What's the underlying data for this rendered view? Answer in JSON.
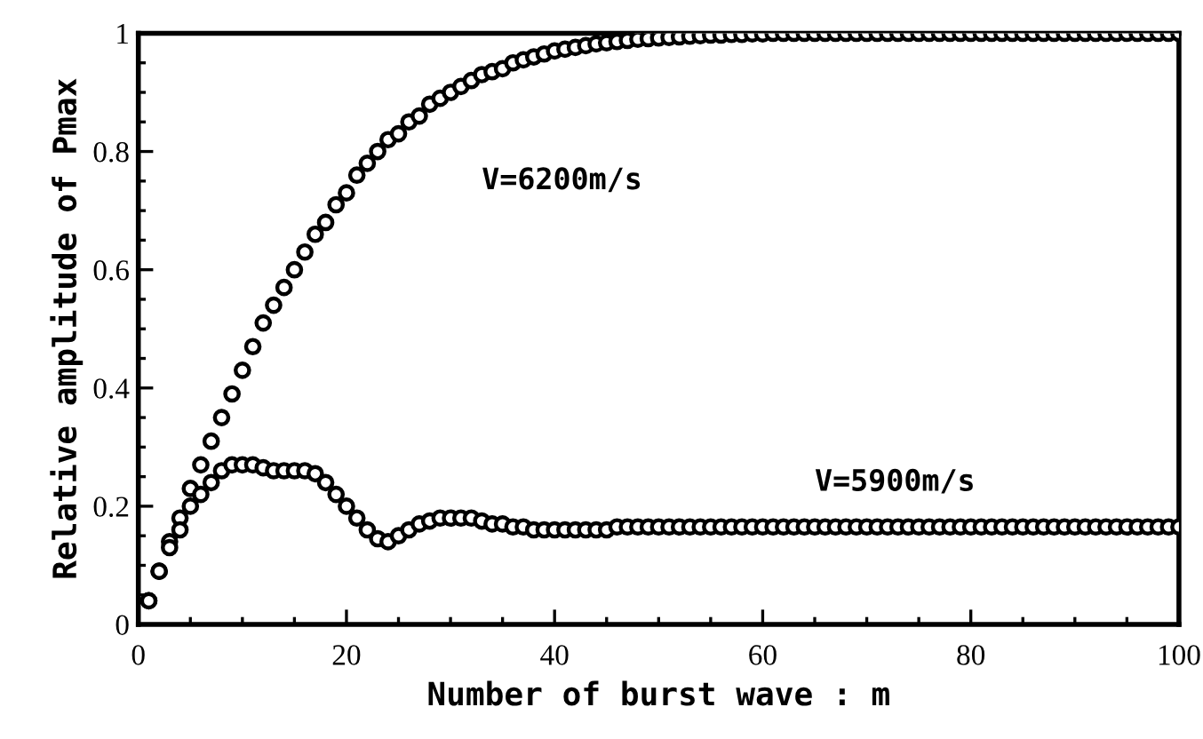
{
  "chart_data": {
    "type": "scatter",
    "xlabel": "Number of burst wave : m",
    "ylabel": "Relative amplitude of Pmax",
    "x": [
      1,
      2,
      3,
      4,
      5,
      6,
      7,
      8,
      9,
      10,
      11,
      12,
      13,
      14,
      15,
      16,
      17,
      18,
      19,
      20,
      21,
      22,
      23,
      24,
      25,
      26,
      27,
      28,
      29,
      30,
      31,
      32,
      33,
      34,
      35,
      36,
      37,
      38,
      39,
      40,
      41,
      42,
      43,
      44,
      45,
      46,
      47,
      48,
      49,
      50,
      51,
      52,
      53,
      54,
      55,
      56,
      57,
      58,
      59,
      60,
      61,
      62,
      63,
      64,
      65,
      66,
      67,
      68,
      69,
      70,
      71,
      72,
      73,
      74,
      75,
      76,
      77,
      78,
      79,
      80,
      81,
      82,
      83,
      84,
      85,
      86,
      87,
      88,
      89,
      90,
      91,
      92,
      93,
      94,
      95,
      96,
      97,
      98,
      99,
      100
    ],
    "series": [
      {
        "name": "V=6200m/s",
        "color": "#000000",
        "values": [
          0.04,
          0.09,
          0.14,
          0.18,
          0.23,
          0.27,
          0.31,
          0.35,
          0.39,
          0.43,
          0.47,
          0.51,
          0.54,
          0.57,
          0.6,
          0.63,
          0.66,
          0.68,
          0.71,
          0.73,
          0.76,
          0.78,
          0.8,
          0.82,
          0.83,
          0.85,
          0.86,
          0.88,
          0.89,
          0.9,
          0.91,
          0.92,
          0.93,
          0.935,
          0.94,
          0.95,
          0.955,
          0.96,
          0.965,
          0.97,
          0.973,
          0.976,
          0.979,
          0.982,
          0.984,
          0.986,
          0.988,
          0.99,
          0.991,
          0.992,
          0.993,
          0.994,
          0.995,
          0.996,
          0.997,
          0.997,
          0.998,
          0.998,
          0.999,
          0.999,
          1,
          1,
          1,
          1,
          1,
          1,
          1,
          1,
          1,
          1,
          1,
          1,
          1,
          1,
          1,
          1,
          1,
          1,
          1,
          1,
          1,
          1,
          1,
          1,
          1,
          1,
          1,
          1,
          1,
          1,
          1,
          1,
          1,
          1,
          1,
          1,
          1,
          1,
          1,
          1
        ]
      },
      {
        "name": "V=5900m/s",
        "color": "#000000",
        "values": [
          0.04,
          0.09,
          0.13,
          0.16,
          0.2,
          0.22,
          0.24,
          0.26,
          0.27,
          0.27,
          0.27,
          0.265,
          0.26,
          0.26,
          0.26,
          0.26,
          0.255,
          0.24,
          0.22,
          0.2,
          0.18,
          0.16,
          0.145,
          0.14,
          0.15,
          0.16,
          0.17,
          0.175,
          0.18,
          0.18,
          0.18,
          0.18,
          0.175,
          0.17,
          0.17,
          0.165,
          0.165,
          0.16,
          0.16,
          0.16,
          0.16,
          0.16,
          0.16,
          0.16,
          0.16,
          0.165,
          0.165,
          0.165,
          0.165,
          0.165,
          0.165,
          0.165,
          0.165,
          0.165,
          0.165,
          0.165,
          0.165,
          0.165,
          0.165,
          0.165,
          0.165,
          0.165,
          0.165,
          0.165,
          0.165,
          0.165,
          0.165,
          0.165,
          0.165,
          0.165,
          0.165,
          0.165,
          0.165,
          0.165,
          0.165,
          0.165,
          0.165,
          0.165,
          0.165,
          0.165,
          0.165,
          0.165,
          0.165,
          0.165,
          0.165,
          0.165,
          0.165,
          0.165,
          0.165,
          0.165,
          0.165,
          0.165,
          0.165,
          0.165,
          0.165,
          0.165,
          0.165,
          0.165,
          0.165,
          0.165
        ]
      }
    ],
    "marker": "circle",
    "xlim": [
      0,
      100
    ],
    "xticks": [
      0,
      20,
      40,
      60,
      80,
      100
    ],
    "ylim": [
      0,
      1
    ],
    "yticks": [
      0,
      0.2,
      0.4,
      0.6,
      0.8,
      1
    ],
    "grid": false,
    "legend": false
  }
}
